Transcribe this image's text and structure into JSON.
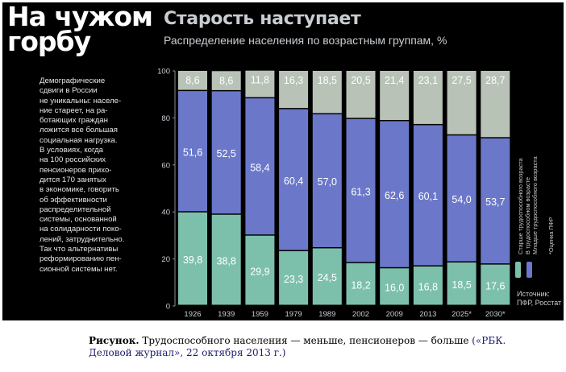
{
  "left_panel": {
    "title": "На чужом горбу",
    "text": "Демографические\nсдвиги в России\nне уникальны: населе-\nние стареет, на ра-\nботающих граждан\nложится все большая\nсоциальная нагрузка.\nВ условиях, когда\nна 100 российских\nпенсионеров прихо-\nдится 170 занятых\nв экономике, говорить\nоб эффективности\nраспределительной\nсистемы, основанной\nна солидарности поко-\nлений, затруднительно.\nТак что альтернативы\nреформированию пен-\nсионной системы нет."
  },
  "legend": {
    "older": "Старше трудоспособного возраста",
    "working": "В трудоспособном возрасте",
    "younger": "Младше трудоспособного возраста",
    "note": "*Оценка ПФР"
  },
  "source": {
    "label": "Источник:",
    "value": "ПФР, Росстат"
  },
  "caption": {
    "prefix": "Рисунок.",
    "title": "Трудоспособного населения — меньше, пенсионеров — больше",
    "source": "(«РБК. Деловой журнал», 22 октября 2013 г.)"
  },
  "colors": {
    "older": "#b8c2b7",
    "working": "#6b78c9",
    "younger": "#7cc0ac",
    "background": "#000000",
    "text": "#c9cdd2"
  },
  "chart_data": {
    "type": "bar",
    "stacked": true,
    "title": "Старость наступает",
    "subtitle": "Распределение населения по возрастным группам, %",
    "categories": [
      "1926",
      "1939",
      "1959",
      "1979",
      "1989",
      "2002",
      "2009",
      "2013",
      "2025*",
      "2030*"
    ],
    "series": [
      {
        "name": "Младше трудоспособного возраста",
        "values": [
          39.8,
          38.8,
          29.9,
          23.3,
          24.5,
          18.2,
          16.0,
          16.8,
          18.5,
          17.6
        ],
        "labels": [
          "39,8",
          "38,8",
          "29,9",
          "23,3",
          "24,5",
          "18,2",
          "16,0",
          "16,8",
          "18,5",
          "17,6"
        ]
      },
      {
        "name": "В трудоспособном возрасте",
        "values": [
          51.6,
          52.5,
          58.4,
          60.4,
          57.0,
          61.3,
          62.6,
          60.1,
          54.0,
          53.7
        ],
        "labels": [
          "51,6",
          "52,5",
          "58,4",
          "60,4",
          "57,0",
          "61,3",
          "62,6",
          "60,1",
          "54,0",
          "53,7"
        ]
      },
      {
        "name": "Старше трудоспособного возраста",
        "values": [
          8.6,
          8.6,
          11.8,
          16.3,
          18.5,
          20.5,
          21.4,
          23.1,
          27.5,
          28.7
        ],
        "labels": [
          "8,6",
          "8,6",
          "11,8",
          "16,3",
          "18,5",
          "20,5",
          "21,4",
          "23,1",
          "27,5",
          "28,7"
        ]
      }
    ],
    "ylim": [
      0,
      100
    ],
    "yticks": [
      0,
      20,
      40,
      60,
      80,
      100
    ],
    "grid": false,
    "legend_position": "right"
  }
}
